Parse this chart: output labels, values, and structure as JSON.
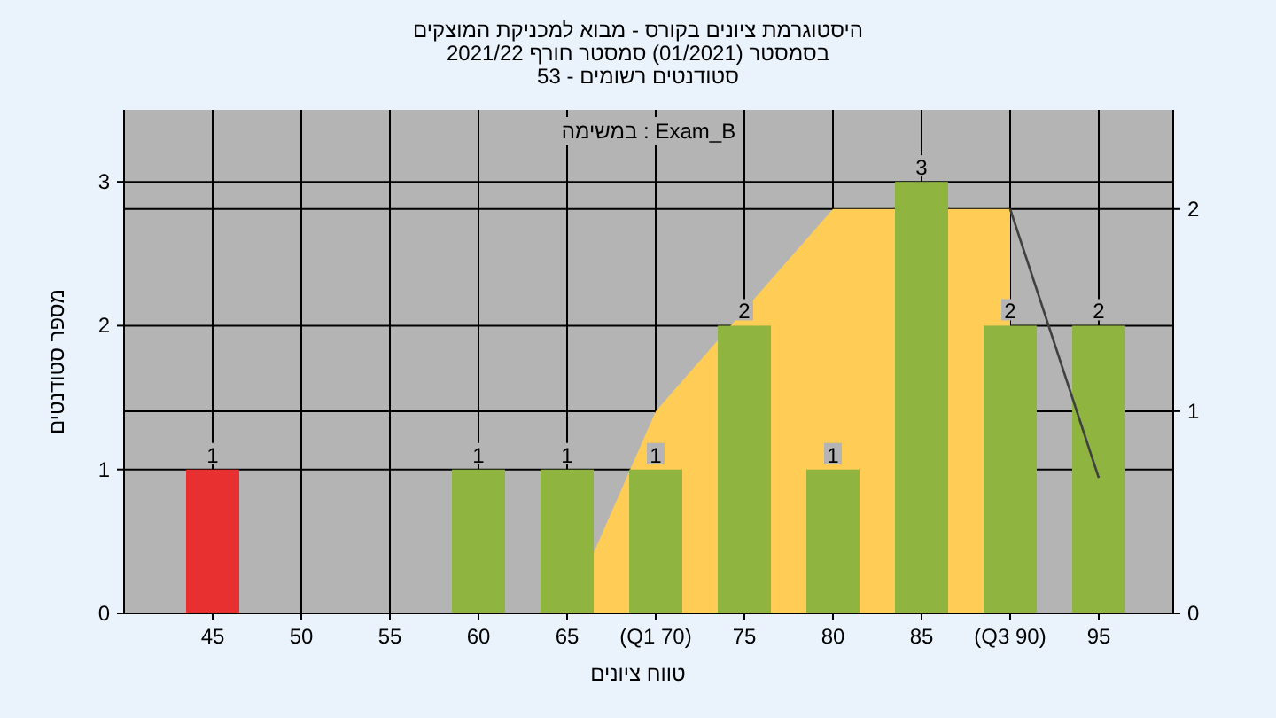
{
  "chart_data": {
    "type": "bar",
    "title": "היסטוגרמת ציונים בקורס - מבוא למכניקת המוצקים",
    "subtitle": "בסמסטר (01/2021) סמסטר חורף 2021/22",
    "annotations": [
      "סטודנטים רשומים - 53",
      "Exam_B : במשימה"
    ],
    "xlabel": "טווח ציונים",
    "ylabel": "מספר סטודנטים",
    "categories": [
      "45",
      "50",
      "55",
      "60",
      "65",
      "(Q1 70)",
      "75",
      "80",
      "85",
      "(Q3 90)",
      "95"
    ],
    "series": [
      {
        "type": "area",
        "axis": "y2",
        "color": "#ffcc55",
        "values": [
          null,
          null,
          null,
          null,
          0,
          1,
          null,
          2,
          null,
          2,
          null
        ]
      },
      {
        "type": "line",
        "axis": "y2",
        "color": "#404040",
        "values": [
          null,
          null,
          null,
          null,
          null,
          null,
          null,
          null,
          null,
          2,
          0.67
        ]
      },
      {
        "colors": [
          "#e83030",
          "#8fb440",
          "#8fb440",
          "#8fb440",
          "#8fb440",
          "#8fb440",
          "#8fb440",
          "#8fb440",
          "#8fb440",
          "#8fb440",
          "#8fb440"
        ],
        "values": [
          1,
          0,
          0,
          1,
          1,
          1,
          2,
          1,
          3,
          2,
          2
        ],
        "value_labels": [
          "1",
          null,
          null,
          "1",
          "1",
          "1",
          "2",
          "1",
          "3",
          "2",
          "2"
        ]
      }
    ],
    "ylim": [
      0,
      3.5
    ],
    "yticks": [
      0,
      1,
      2,
      3
    ],
    "y2lim": [
      0,
      2.49
    ],
    "y2ticks": [
      0,
      1,
      2
    ],
    "grid": true
  }
}
